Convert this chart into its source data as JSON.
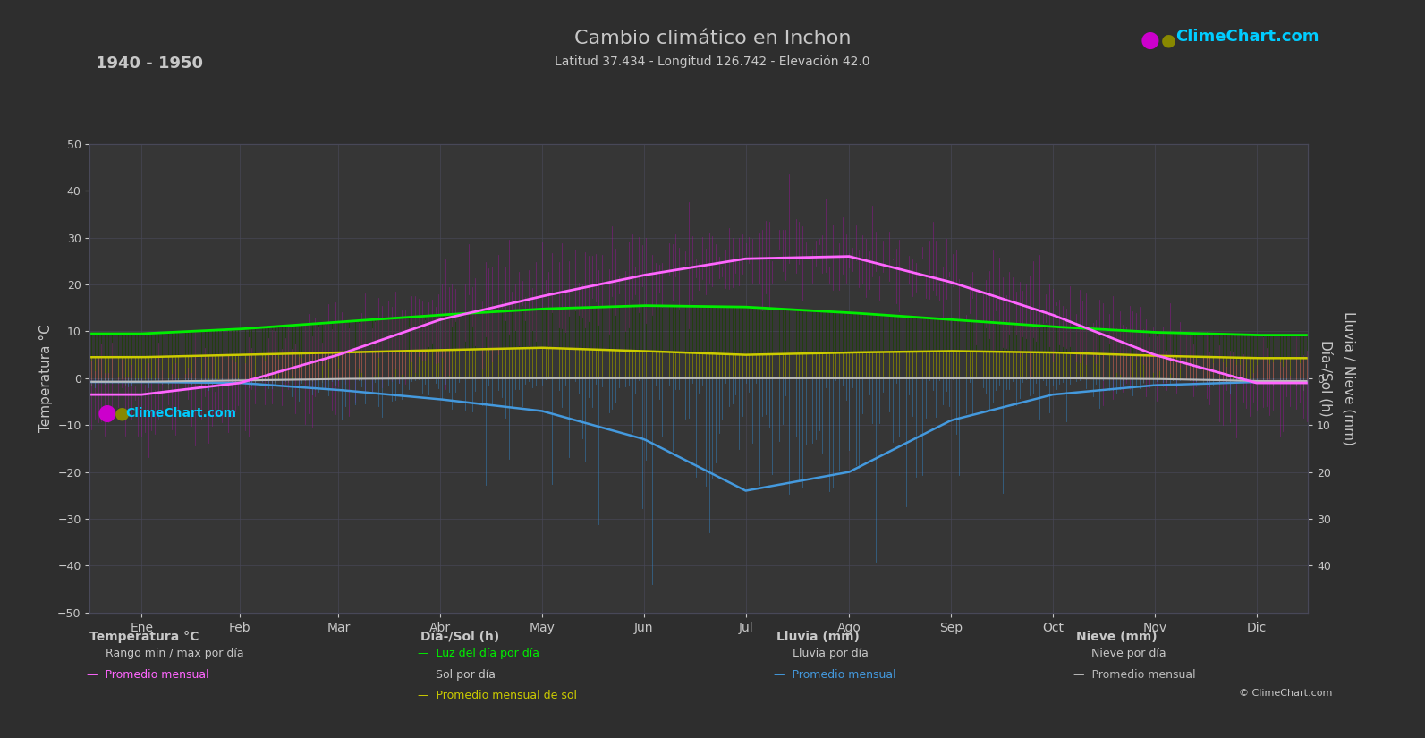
{
  "title": "Cambio climático en Inchon",
  "subtitle": "Latitud 37.434 - Longitud 126.742 - Elevación 42.0",
  "year_range": "1940 - 1950",
  "bg_color": "#2e2e2e",
  "plot_bg_color": "#363636",
  "grid_color": "#484858",
  "text_color": "#c8c8c8",
  "months": [
    "Ene",
    "Feb",
    "Mar",
    "Abr",
    "May",
    "Jun",
    "Jul",
    "Ago",
    "Sep",
    "Oct",
    "Nov",
    "Dic"
  ],
  "days_per_month": [
    31,
    28,
    31,
    30,
    31,
    30,
    31,
    31,
    30,
    31,
    30,
    31
  ],
  "temp_ylim": [
    -50,
    50
  ],
  "daylight_scale_max": 24,
  "rain_scale_max": 40,
  "temp_monthly_avg": [
    -3.5,
    -1.0,
    5.0,
    12.5,
    17.5,
    22.0,
    25.5,
    26.0,
    20.5,
    13.5,
    5.0,
    -1.0
  ],
  "temp_daily_max_avg": [
    2.0,
    4.5,
    11.0,
    18.5,
    23.5,
    27.0,
    29.5,
    30.5,
    25.0,
    18.0,
    9.5,
    3.5
  ],
  "temp_daily_min_avg": [
    -9.5,
    -7.5,
    -1.5,
    5.5,
    11.5,
    17.5,
    21.5,
    22.0,
    15.0,
    7.5,
    -0.5,
    -6.5
  ],
  "daylight_hours": [
    9.5,
    10.5,
    12.0,
    13.5,
    14.8,
    15.5,
    15.2,
    14.0,
    12.5,
    11.0,
    9.8,
    9.2
  ],
  "sunshine_hours": [
    4.5,
    5.0,
    5.5,
    6.0,
    6.5,
    5.8,
    5.0,
    5.5,
    5.8,
    5.5,
    4.8,
    4.3
  ],
  "rainfall_monthly_avg": [
    0.8,
    1.0,
    2.5,
    4.5,
    7.0,
    13.0,
    24.0,
    20.0,
    9.0,
    3.5,
    1.5,
    0.8
  ],
  "rainfall_daily_scale": [
    2.0,
    2.5,
    5.0,
    7.0,
    12.0,
    20.0,
    30.0,
    28.0,
    15.0,
    6.0,
    3.0,
    1.5
  ],
  "snow_monthly_avg": [
    1.5,
    1.0,
    0.3,
    0.0,
    0.0,
    0.0,
    0.0,
    0.0,
    0.0,
    0.0,
    0.3,
    1.2
  ],
  "snow_daily_scale": [
    4.0,
    3.0,
    1.0,
    0.0,
    0.0,
    0.0,
    0.0,
    0.0,
    0.0,
    0.0,
    1.5,
    3.5
  ],
  "color_temp_bar": "#cc00cc",
  "color_daylight_line": "#00ee00",
  "color_sunshine_fill": "#999900",
  "color_daylight_fill": "#1a3300",
  "color_temp_avg_line": "#ff66ff",
  "color_rain_bar": "#3388cc",
  "color_rain_avg": "#4499dd",
  "color_snow_bar": "#888888",
  "color_snow_avg": "#bbbbbb",
  "color_sunshine_line": "#cccc00"
}
